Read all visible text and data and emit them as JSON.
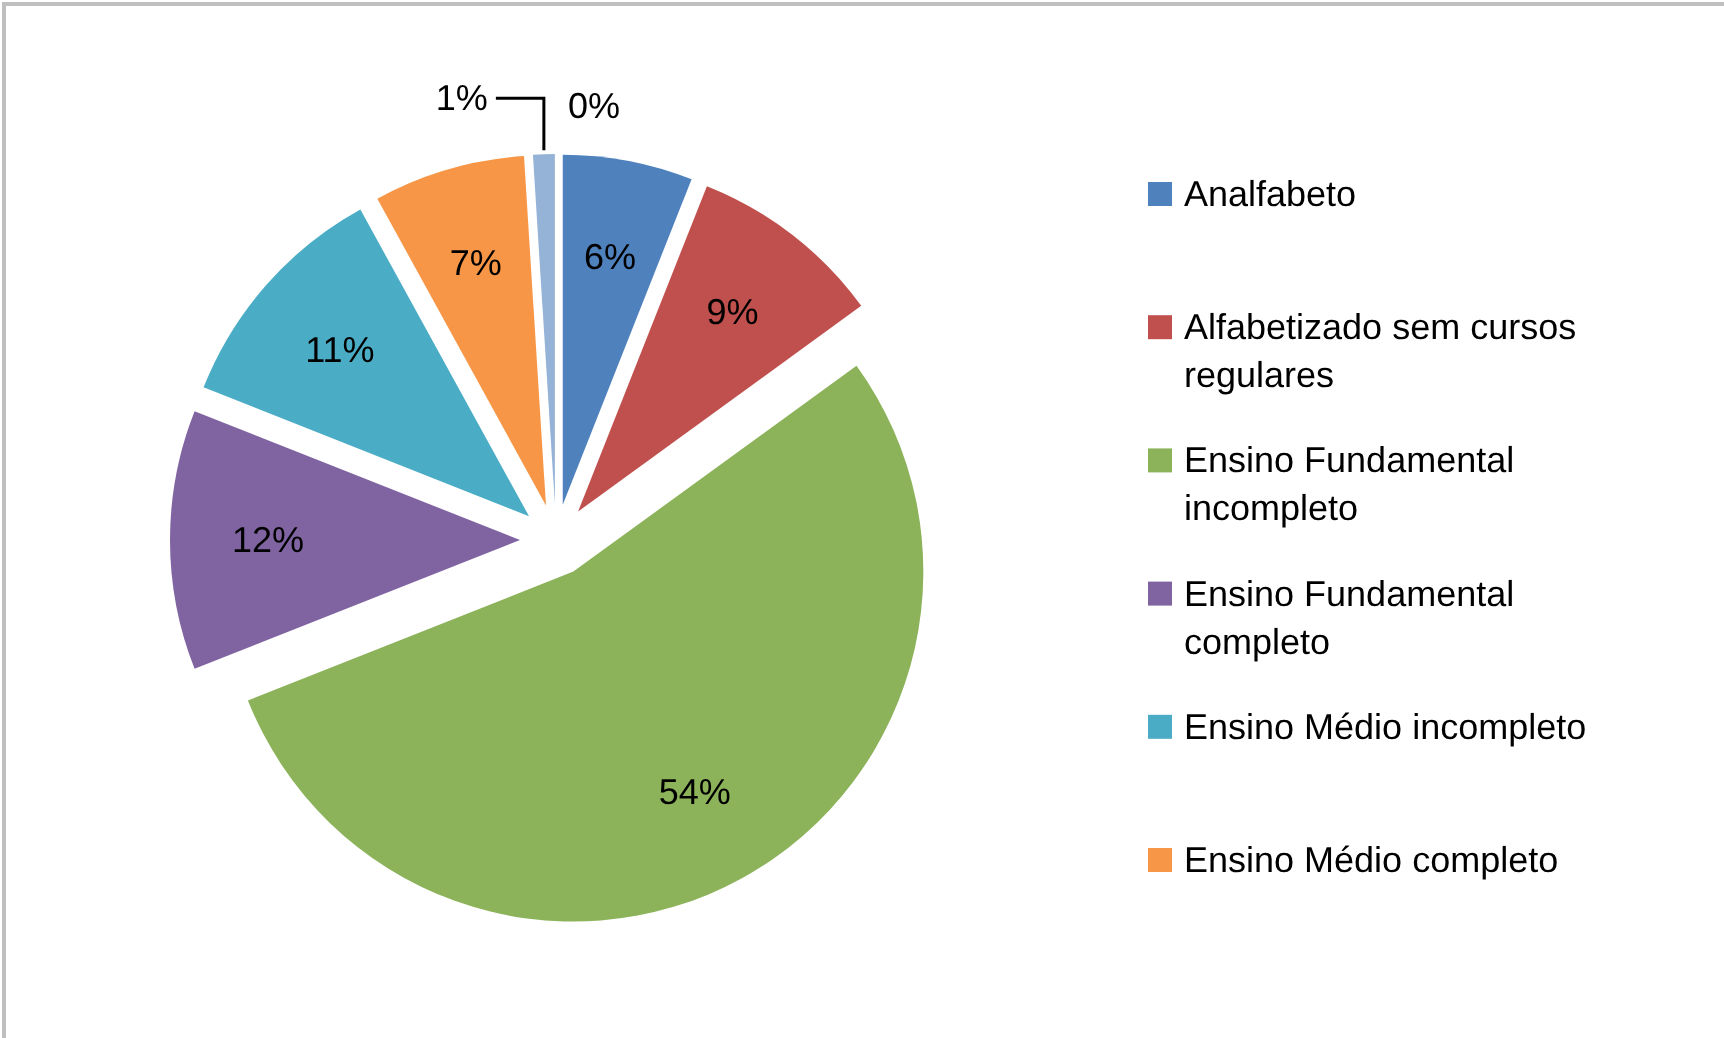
{
  "chart_data": {
    "type": "pie",
    "categories": [
      "Analfabeto",
      "Alfabetizado sem cursos regulares",
      "Ensino Fundamental incompleto",
      "Ensino Fundamental completo",
      "Ensino Médio incompleto",
      "Ensino Médio completo",
      null,
      null
    ],
    "values": [
      6,
      9,
      54,
      12,
      11,
      7,
      1,
      0
    ],
    "value_labels": [
      "6%",
      "9%",
      "54%",
      "12%",
      "11%",
      "7%",
      "1%",
      "0%"
    ],
    "colors": [
      "#4f81bd",
      "#c0504d",
      "#8cb35a",
      "#8064a2",
      "#4bacc6",
      "#f79646",
      "#95b3d7",
      "#d99694"
    ],
    "legend": "right"
  }
}
